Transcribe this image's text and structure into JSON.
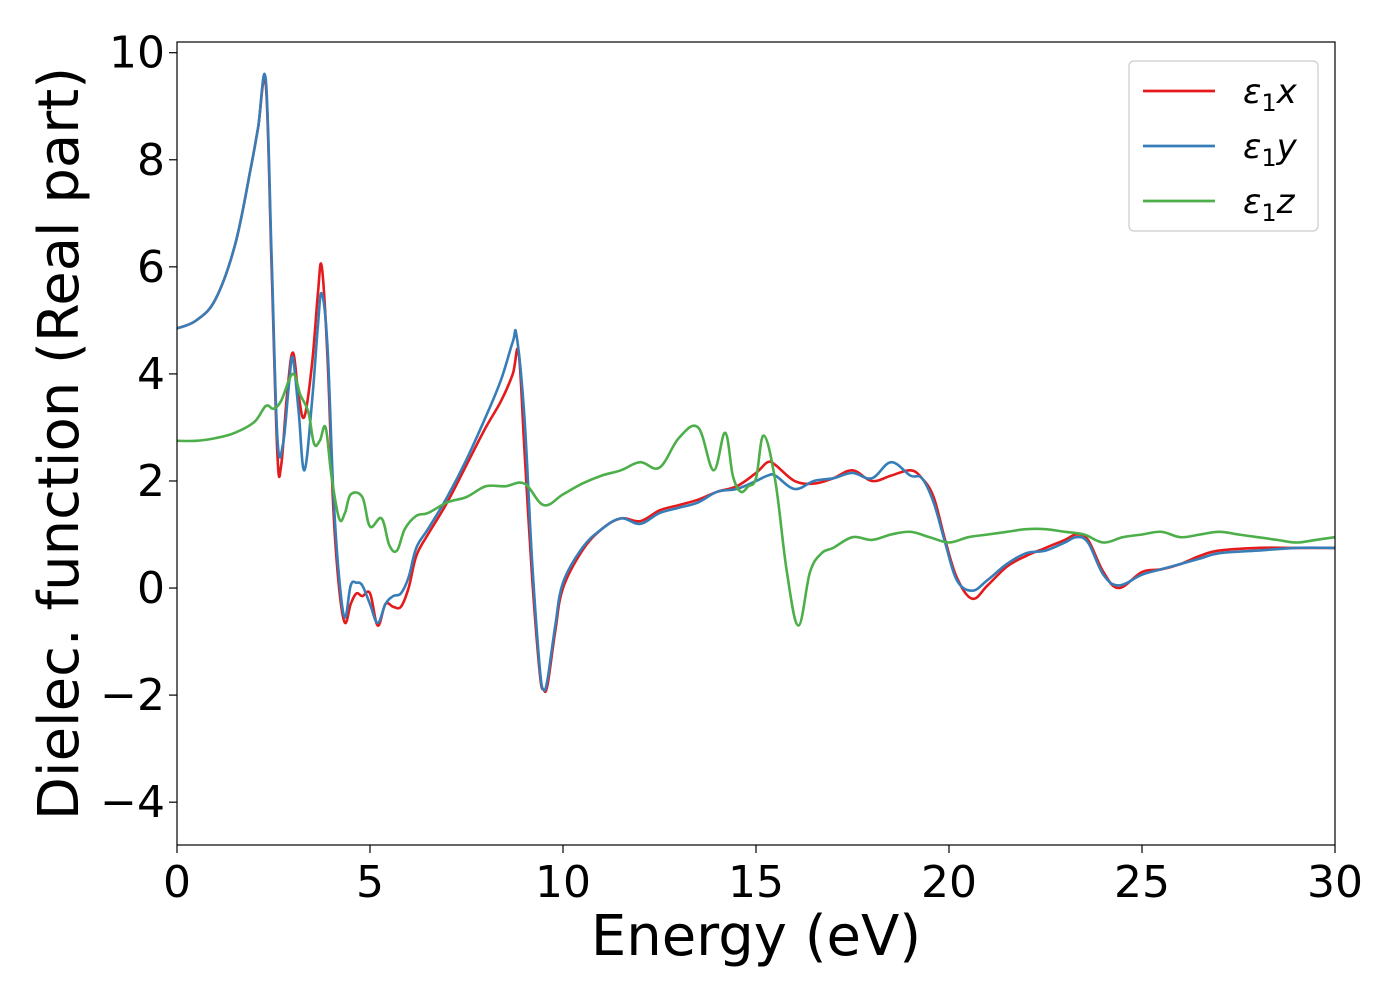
{
  "chart_data": {
    "type": "line",
    "xlabel": "Energy (eV)",
    "ylabel": "Dielec. function (Real part)",
    "xlim": [
      0,
      30
    ],
    "ylim": [
      -4.8,
      10.2
    ],
    "xticks": [
      0,
      5,
      10,
      15,
      20,
      25,
      30
    ],
    "yticks": [
      -4,
      -2,
      0,
      2,
      4,
      6,
      8,
      10
    ],
    "xtick_labels": [
      "0",
      "5",
      "10",
      "15",
      "20",
      "25",
      "30"
    ],
    "ytick_labels": [
      "−4",
      "−2",
      "0",
      "2",
      "4",
      "6",
      "8",
      "10"
    ],
    "grid": false,
    "legend_position": "top-right",
    "series": [
      {
        "name": "ε1x",
        "legend_base": "ε",
        "legend_sub": "1",
        "legend_var": "x",
        "color": "#e41a1c",
        "x": [
          0,
          0.5,
          1.0,
          1.5,
          1.9,
          2.1,
          2.3,
          2.45,
          2.6,
          2.7,
          2.85,
          3.0,
          3.15,
          3.3,
          3.5,
          3.65,
          3.75,
          3.9,
          4.05,
          4.2,
          4.35,
          4.5,
          4.65,
          4.8,
          5.0,
          5.2,
          5.4,
          5.6,
          5.8,
          6.0,
          6.2,
          6.5,
          7.0,
          7.5,
          8.0,
          8.4,
          8.7,
          8.85,
          9.0,
          9.2,
          9.4,
          9.5,
          9.6,
          9.8,
          10.0,
          10.5,
          11.0,
          11.5,
          12.0,
          12.5,
          13.0,
          13.5,
          14.0,
          14.5,
          15.0,
          15.3,
          15.5,
          16.0,
          16.5,
          17.0,
          17.5,
          18.0,
          18.5,
          19.0,
          19.3,
          19.6,
          19.9,
          20.2,
          20.6,
          21.0,
          21.5,
          22.0,
          22.5,
          23.0,
          23.3,
          23.6,
          24.0,
          24.4,
          25.0,
          25.5,
          26.0,
          26.5,
          27.0,
          28.0,
          29.0,
          30.0
        ],
        "y": [
          4.85,
          5.0,
          5.4,
          6.4,
          7.8,
          8.6,
          9.4,
          6.0,
          2.5,
          2.3,
          3.6,
          4.4,
          3.6,
          3.2,
          4.2,
          5.5,
          6.0,
          4.3,
          1.5,
          0.0,
          -0.65,
          -0.3,
          -0.1,
          -0.15,
          -0.1,
          -0.7,
          -0.3,
          -0.35,
          -0.35,
          0.0,
          0.6,
          1.0,
          1.6,
          2.3,
          3.0,
          3.5,
          4.0,
          4.4,
          2.6,
          0.2,
          -1.6,
          -1.9,
          -1.8,
          -0.8,
          0.0,
          0.7,
          1.1,
          1.3,
          1.25,
          1.45,
          1.55,
          1.65,
          1.8,
          1.9,
          2.15,
          2.35,
          2.3,
          2.0,
          1.95,
          2.05,
          2.2,
          2.0,
          2.1,
          2.2,
          2.05,
          1.7,
          0.9,
          0.2,
          -0.2,
          0.05,
          0.4,
          0.6,
          0.75,
          0.9,
          1.0,
          0.9,
          0.3,
          0.0,
          0.3,
          0.35,
          0.45,
          0.6,
          0.7,
          0.75,
          0.75,
          0.75
        ]
      },
      {
        "name": "ε1y",
        "legend_base": "ε",
        "legend_sub": "1",
        "legend_var": "y",
        "color": "#377eb8",
        "x": [
          0,
          0.5,
          1.0,
          1.5,
          1.9,
          2.1,
          2.3,
          2.45,
          2.6,
          2.75,
          2.9,
          3.0,
          3.15,
          3.3,
          3.5,
          3.65,
          3.75,
          3.9,
          4.05,
          4.2,
          4.35,
          4.5,
          4.65,
          4.8,
          5.0,
          5.2,
          5.4,
          5.6,
          5.8,
          6.0,
          6.2,
          6.5,
          7.0,
          7.5,
          8.0,
          8.4,
          8.7,
          8.8,
          9.0,
          9.2,
          9.4,
          9.5,
          9.6,
          9.8,
          10.0,
          10.5,
          11.0,
          11.5,
          12.0,
          12.5,
          13.0,
          13.5,
          14.0,
          14.5,
          15.0,
          15.3,
          15.5,
          16.0,
          16.5,
          17.0,
          17.5,
          18.0,
          18.5,
          19.0,
          19.3,
          19.6,
          19.9,
          20.2,
          20.6,
          21.0,
          21.5,
          22.0,
          22.5,
          23.0,
          23.3,
          23.6,
          24.0,
          24.4,
          25.0,
          25.5,
          26.0,
          26.5,
          27.0,
          28.0,
          29.0,
          30.0
        ],
        "y": [
          4.85,
          5.0,
          5.4,
          6.4,
          7.8,
          8.6,
          9.5,
          6.2,
          2.8,
          2.7,
          3.8,
          4.3,
          3.3,
          2.2,
          3.5,
          4.9,
          5.5,
          4.5,
          1.8,
          0.2,
          -0.55,
          0.05,
          0.1,
          0.05,
          -0.3,
          -0.65,
          -0.3,
          -0.15,
          -0.1,
          0.2,
          0.75,
          1.1,
          1.7,
          2.4,
          3.2,
          3.9,
          4.6,
          4.7,
          3.2,
          0.5,
          -1.5,
          -1.9,
          -1.7,
          -0.7,
          0.1,
          0.75,
          1.1,
          1.3,
          1.2,
          1.4,
          1.5,
          1.6,
          1.8,
          1.85,
          2.0,
          2.1,
          2.1,
          1.85,
          2.0,
          2.05,
          2.15,
          2.05,
          2.35,
          2.1,
          2.05,
          1.6,
          0.85,
          0.15,
          -0.05,
          0.15,
          0.45,
          0.65,
          0.7,
          0.85,
          0.95,
          0.85,
          0.25,
          0.05,
          0.25,
          0.35,
          0.45,
          0.55,
          0.65,
          0.7,
          0.75,
          0.75
        ]
      },
      {
        "name": "ε1z",
        "legend_base": "ε",
        "legend_sub": "1",
        "legend_var": "z",
        "color": "#4daf4a",
        "x": [
          0,
          0.5,
          1.0,
          1.5,
          2.0,
          2.3,
          2.5,
          2.7,
          3.0,
          3.2,
          3.4,
          3.55,
          3.7,
          3.85,
          4.0,
          4.2,
          4.35,
          4.5,
          4.8,
          5.0,
          5.3,
          5.5,
          5.7,
          5.9,
          6.2,
          6.5,
          7.0,
          7.5,
          8.0,
          8.5,
          9.0,
          9.5,
          10.0,
          10.5,
          11.0,
          11.5,
          12.0,
          12.5,
          13.0,
          13.5,
          13.9,
          14.2,
          14.4,
          14.6,
          14.8,
          15.0,
          15.2,
          15.5,
          15.8,
          16.1,
          16.4,
          16.7,
          17.0,
          17.5,
          18.0,
          18.5,
          19.0,
          19.5,
          20.0,
          20.5,
          21.0,
          21.5,
          22.0,
          22.5,
          23.0,
          23.5,
          24.0,
          24.5,
          25.0,
          25.5,
          26.0,
          26.5,
          27.0,
          27.5,
          28.0,
          28.5,
          29.0,
          29.5,
          30.0
        ],
        "y": [
          2.75,
          2.75,
          2.8,
          2.9,
          3.1,
          3.4,
          3.35,
          3.5,
          4.0,
          3.6,
          3.3,
          2.7,
          2.75,
          3.0,
          2.1,
          1.3,
          1.4,
          1.75,
          1.7,
          1.15,
          1.3,
          0.8,
          0.7,
          1.1,
          1.35,
          1.4,
          1.6,
          1.7,
          1.9,
          1.9,
          1.95,
          1.55,
          1.75,
          1.95,
          2.1,
          2.2,
          2.35,
          2.25,
          2.8,
          3.0,
          2.2,
          2.9,
          2.1,
          1.8,
          1.9,
          2.05,
          2.85,
          2.0,
          0.3,
          -0.7,
          0.3,
          0.65,
          0.75,
          0.95,
          0.9,
          1.0,
          1.05,
          0.95,
          0.85,
          0.95,
          1.0,
          1.05,
          1.1,
          1.1,
          1.05,
          1.0,
          0.85,
          0.95,
          1.0,
          1.05,
          0.95,
          1.0,
          1.05,
          1.0,
          0.95,
          0.9,
          0.85,
          0.9,
          0.95
        ]
      }
    ]
  }
}
